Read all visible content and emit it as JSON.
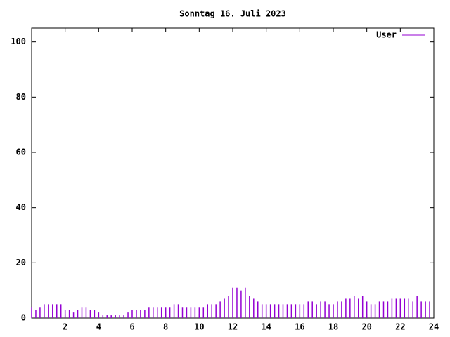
{
  "chart_data": {
    "type": "impulses",
    "title": "Sonntag 16. Juli 2023",
    "legend": "top-right",
    "series": [
      {
        "name": "User",
        "color": "#9400d3",
        "x": [
          0,
          0.25,
          0.5,
          0.75,
          1,
          1.25,
          1.5,
          1.75,
          2,
          2.25,
          2.5,
          2.75,
          3,
          3.25,
          3.5,
          3.75,
          4,
          4.25,
          4.5,
          4.75,
          5,
          5.25,
          5.5,
          5.75,
          6,
          6.25,
          6.5,
          6.75,
          7,
          7.25,
          7.5,
          7.75,
          8,
          8.25,
          8.5,
          8.75,
          9,
          9.25,
          9.5,
          9.75,
          10,
          10.25,
          10.5,
          10.75,
          11,
          11.25,
          11.5,
          11.75,
          12,
          12.25,
          12.5,
          12.75,
          13,
          13.25,
          13.5,
          13.75,
          14,
          14.25,
          14.5,
          14.75,
          15,
          15.25,
          15.5,
          15.75,
          16,
          16.25,
          16.5,
          16.75,
          17,
          17.25,
          17.5,
          17.75,
          18,
          18.25,
          18.5,
          18.75,
          19,
          19.25,
          19.5,
          19.75,
          20,
          20.25,
          20.5,
          20.75,
          21,
          21.25,
          21.5,
          21.75,
          22,
          22.25,
          22.5,
          22.75,
          23,
          23.25,
          23.5,
          23.75
        ],
        "values": [
          4,
          3,
          4,
          5,
          5,
          5,
          5,
          5,
          3,
          3,
          2,
          3,
          4,
          4,
          3,
          3,
          2,
          1,
          1,
          1,
          1,
          1,
          1,
          2,
          3,
          3,
          3,
          3,
          4,
          4,
          4,
          4,
          4,
          4,
          5,
          5,
          4,
          4,
          4,
          4,
          4,
          4,
          5,
          5,
          5,
          6,
          7,
          8,
          11,
          11,
          10,
          11,
          8,
          7,
          6,
          5,
          5,
          5,
          5,
          5,
          5,
          5,
          5,
          5,
          5,
          5,
          6,
          6,
          5,
          6,
          6,
          5,
          5,
          6,
          6,
          7,
          7,
          8,
          7,
          8,
          6,
          5,
          5,
          6,
          6,
          6,
          7,
          7,
          7,
          7,
          7,
          6,
          8,
          6,
          6,
          6
        ]
      }
    ],
    "xlim": [
      0,
      24
    ],
    "xticks": [
      2,
      4,
      6,
      8,
      10,
      12,
      14,
      16,
      18,
      20,
      22,
      24
    ],
    "ylim": [
      0,
      105
    ],
    "yticks": [
      0,
      20,
      40,
      60,
      80,
      100
    ]
  }
}
